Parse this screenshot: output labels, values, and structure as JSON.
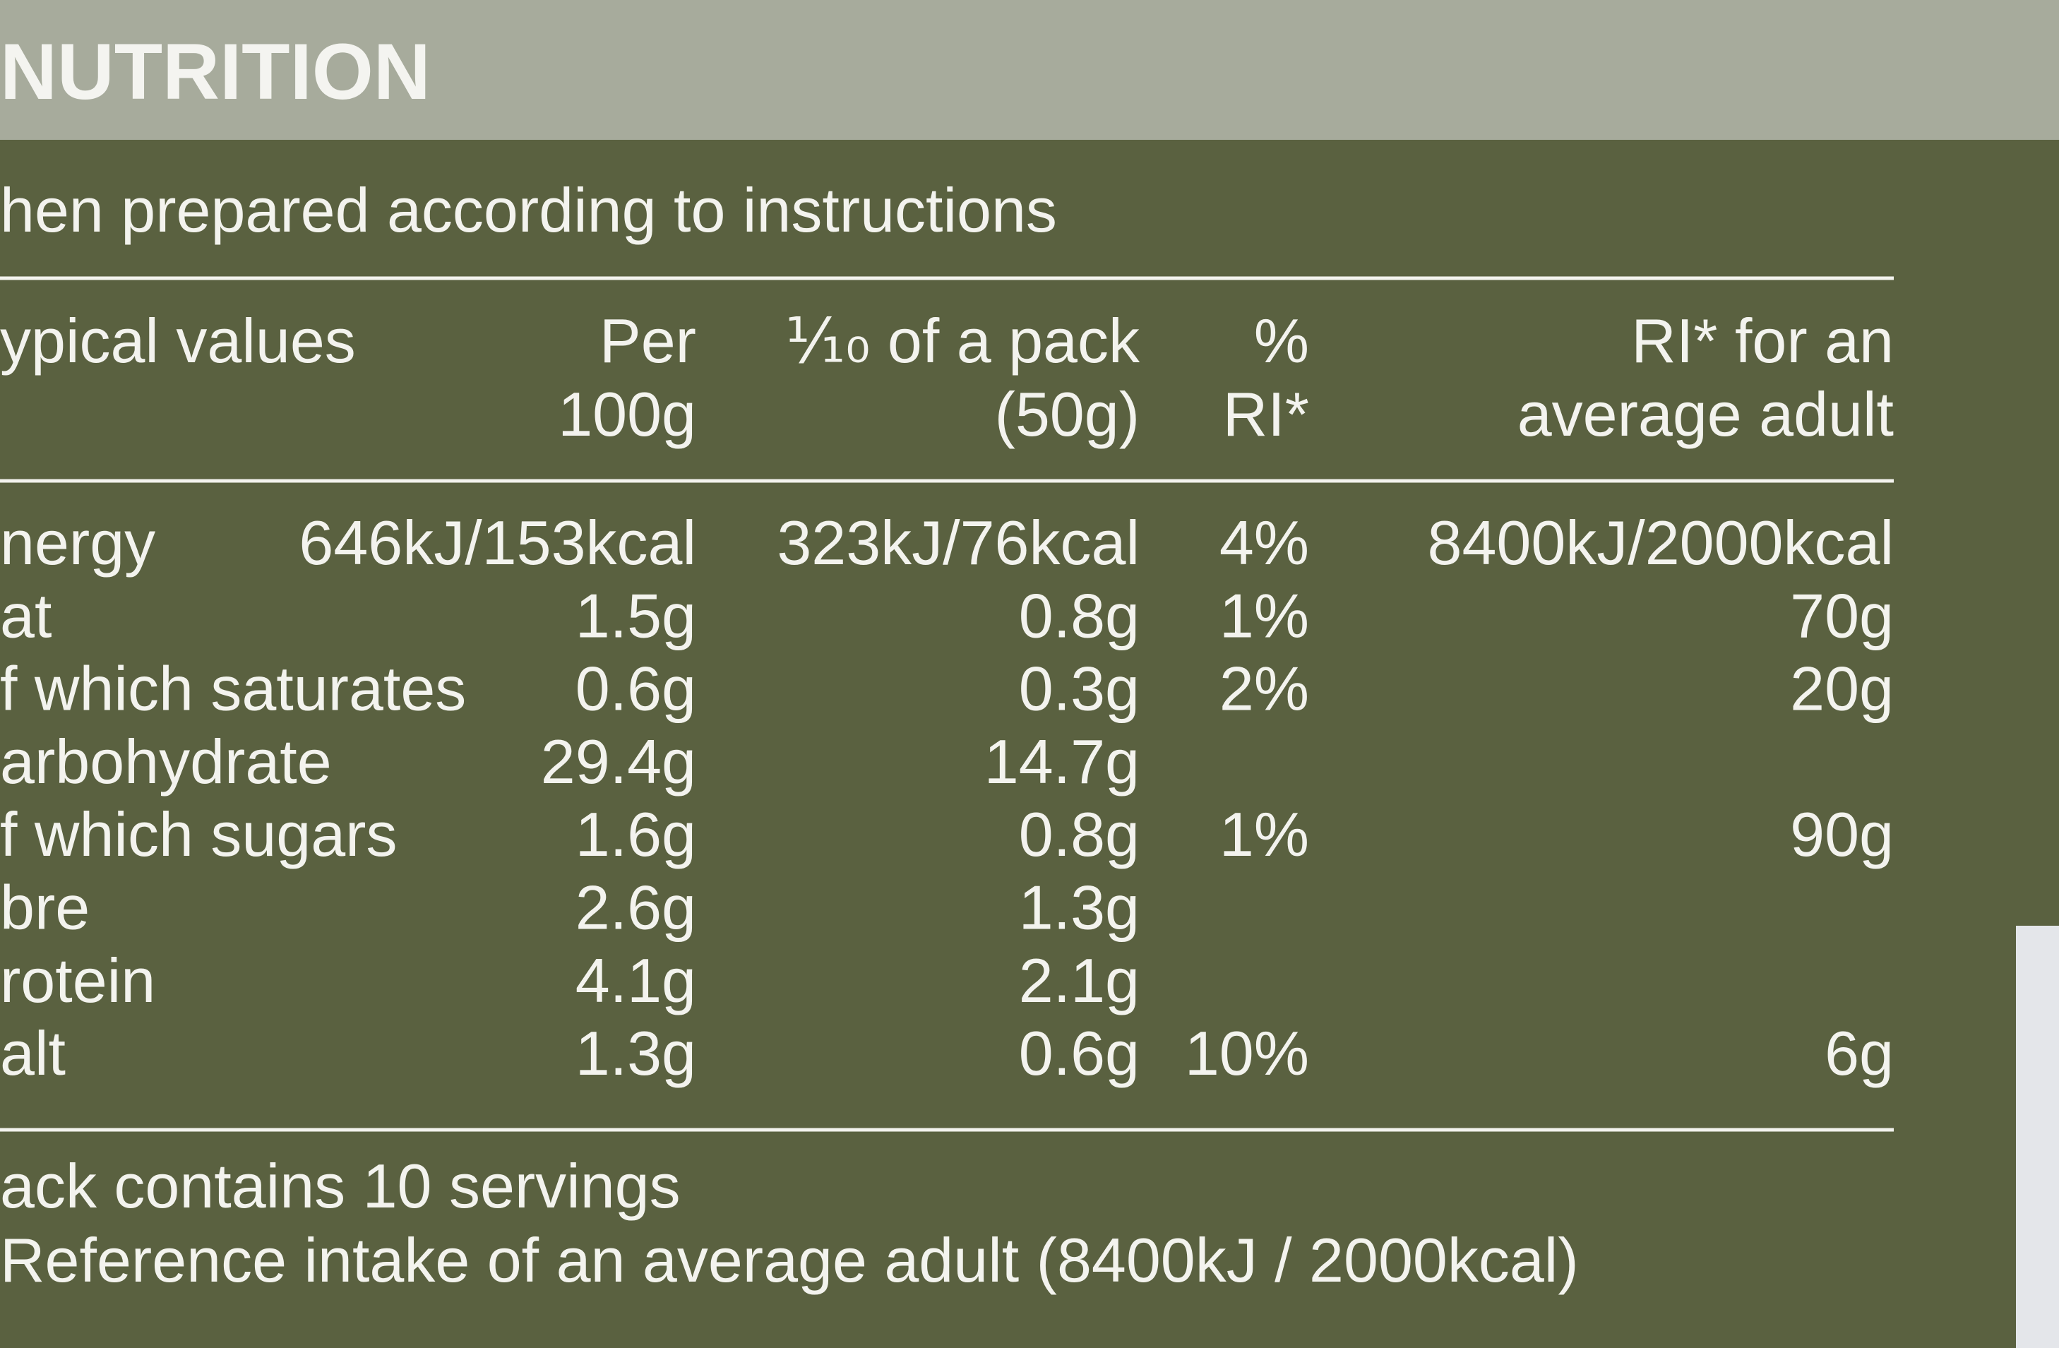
{
  "header": {
    "title": "NUTRITION",
    "subtitle": "hen prepared according to instructions"
  },
  "table": {
    "head": [
      [
        "ypical values",
        null
      ],
      [
        "Per",
        "100g"
      ],
      [
        "⅒ of a pack",
        "(50g)"
      ],
      [
        "%",
        "RI*"
      ],
      [
        "RI* for an",
        "average adult"
      ]
    ],
    "rows": [
      [
        "nergy",
        "646kJ/153kcal",
        "323kJ/76kcal",
        "4%",
        "8400kJ/2000kcal"
      ],
      [
        "at",
        "1.5g",
        "0.8g",
        "1%",
        "70g"
      ],
      [
        "f which saturates",
        "0.6g",
        "0.3g",
        "2%",
        "20g"
      ],
      [
        "arbohydrate",
        "29.4g",
        "14.7g",
        null,
        null
      ],
      [
        "f which sugars",
        "1.6g",
        "0.8g",
        "1%",
        "90g"
      ],
      [
        "bre",
        "2.6g",
        "1.3g",
        null,
        null
      ],
      [
        "rotein",
        "4.1g",
        "2.1g",
        null,
        null
      ],
      [
        "alt",
        "1.3g",
        "0.6g",
        "10%",
        "6g"
      ]
    ]
  },
  "footer": [
    "ack contains 10 servings",
    "Reference intake of an average adult (8400kJ / 2000kcal)"
  ]
}
